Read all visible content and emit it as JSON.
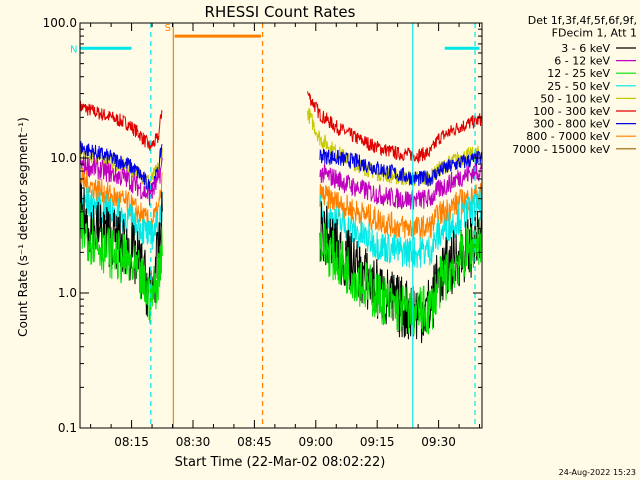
{
  "chart_data": {
    "type": "line",
    "title": "RHESSI Count Rates",
    "xlabel": "Start Time (22-Mar-02 08:02:22)",
    "ylabel": "Count Rate (s⁻¹ detector segment⁻¹)",
    "yscale": "log",
    "ylim": [
      0.1,
      100.0
    ],
    "xlim": [
      "08:02",
      "09:40"
    ],
    "x_unit": "minutes after 08:00",
    "x_range_minutes": [
      2.4,
      100.6
    ],
    "y_ticks": [
      "0.1",
      "1.0",
      "10.0",
      "100.0"
    ],
    "y_tick_values": [
      0.1,
      1.0,
      10.0,
      100.0
    ],
    "x_ticks": [
      "08:15",
      "08:30",
      "08:45",
      "09:00",
      "09:15",
      "09:30"
    ],
    "x_tick_minutes": [
      15,
      30,
      45,
      60,
      75,
      90
    ],
    "legend_header": [
      "Det 1f,3f,4f,5f,6f,9f,",
      "FDecim 1, Att 1"
    ],
    "legend_placement": "right",
    "series": [
      {
        "name": "3 - 6 keV",
        "color": "#000000",
        "segments": [
          {
            "x": [
              2.4,
              6,
              10,
              14,
              17,
              19.5,
              21.5,
              22.5
            ],
            "y": [
              3.8,
              3.0,
              2.6,
              2.2,
              1.6,
              1.0,
              1.8,
              3.5
            ]
          },
          {
            "x": [
              61,
              65,
              70,
              75,
              80,
              85,
              88,
              90,
              95,
              100.6
            ],
            "y": [
              3.0,
              2.1,
              1.5,
              1.05,
              0.8,
              0.72,
              0.78,
              1.3,
              1.9,
              2.6
            ]
          }
        ]
      },
      {
        "name": "6 - 12 keV",
        "color": "#c000c0",
        "segments": [
          {
            "x": [
              2.4,
              6,
              10,
              14,
              17,
              19.5,
              21.5,
              22.5
            ],
            "y": [
              9.0,
              8.4,
              7.7,
              7.0,
              6.0,
              5.2,
              6.8,
              9.0
            ]
          },
          {
            "x": [
              61,
              65,
              70,
              75,
              80,
              85,
              88,
              90,
              95,
              100.6
            ],
            "y": [
              7.8,
              7.0,
              6.0,
              5.4,
              5.0,
              4.9,
              5.0,
              5.8,
              7.2,
              8.2
            ]
          }
        ]
      },
      {
        "name": "12 - 25 keV",
        "color": "#00e000",
        "segments": [
          {
            "x": [
              2.4,
              6,
              10,
              14,
              17,
              19.5,
              21.5,
              22.5
            ],
            "y": [
              3.0,
              2.4,
              2.0,
              1.7,
              1.3,
              0.9,
              1.3,
              2.5
            ]
          },
          {
            "x": [
              61,
              65,
              70,
              75,
              80,
              85,
              88,
              90,
              95,
              100.6
            ],
            "y": [
              2.4,
              1.8,
              1.3,
              0.95,
              0.78,
              0.72,
              0.75,
              1.15,
              1.8,
              2.6
            ]
          }
        ]
      },
      {
        "name": "25 - 50 keV",
        "color": "#00e8e8",
        "segments": [
          {
            "x": [
              2.4,
              6,
              10,
              14,
              17,
              19.5,
              21.5,
              22.5
            ],
            "y": [
              5.0,
              4.4,
              4.0,
              3.6,
              3.1,
              2.6,
              3.2,
              4.6
            ]
          },
          {
            "x": [
              61,
              65,
              70,
              75,
              80,
              85,
              88,
              90,
              95,
              100.6
            ],
            "y": [
              4.1,
              3.4,
              2.8,
              2.3,
              2.05,
              2.0,
              2.1,
              2.7,
              3.6,
              4.6
            ]
          }
        ]
      },
      {
        "name": "50 - 100 keV",
        "color": "#c8c800",
        "segments": [
          {
            "x": [
              2.4,
              6,
              10,
              14,
              17,
              19.5,
              21.5,
              22.5
            ],
            "y": [
              11.0,
              10.2,
              9.4,
              8.6,
              7.6,
              6.6,
              8.4,
              11.0
            ]
          },
          {
            "x": [
              58,
              61,
              65,
              70,
              75,
              80,
              85,
              88,
              90,
              95,
              100.6
            ],
            "y": [
              22,
              14.0,
              11.0,
              9.0,
              7.8,
              7.2,
              7.0,
              7.1,
              8.2,
              10.0,
              11.0
            ]
          }
        ]
      },
      {
        "name": "100 - 300 keV",
        "color": "#e00000",
        "segments": [
          {
            "x": [
              2.4,
              6,
              10,
              14,
              17,
              19.5,
              21.5,
              22.5
            ],
            "y": [
              24,
              22,
              20,
              18,
              15,
              12,
              14,
              24
            ]
          },
          {
            "x": [
              58,
              61,
              65,
              70,
              75,
              80,
              85,
              88,
              90,
              95,
              100.6
            ],
            "y": [
              30,
              21,
              17,
              14,
              12,
              10.8,
              10.5,
              11,
              14,
              17,
              19.5
            ]
          }
        ]
      },
      {
        "name": "300 - 800 keV",
        "color": "#0000e8",
        "segments": [
          {
            "x": [
              2.4,
              6,
              10,
              14,
              17,
              19.5,
              21.5,
              22.5
            ],
            "y": [
              12.0,
              11.0,
              10.0,
              9.0,
              7.6,
              6.0,
              7.8,
              13.0
            ]
          },
          {
            "x": [
              61,
              65,
              70,
              75,
              80,
              85,
              88,
              90,
              95,
              100.6
            ],
            "y": [
              10.5,
              10.0,
              9.4,
              8.4,
              7.6,
              7.0,
              7.1,
              8.0,
              9.2,
              10.0
            ]
          }
        ]
      },
      {
        "name": "800 - 7000 keV",
        "color": "#ff8000",
        "segments": [
          {
            "x": [
              2.4,
              6,
              10,
              14,
              17,
              19.5,
              21.5,
              22.5
            ],
            "y": [
              7.0,
              6.0,
              5.2,
              4.6,
              3.9,
              3.2,
              4.0,
              6.5
            ]
          },
          {
            "x": [
              61,
              65,
              70,
              75,
              80,
              85,
              88,
              90,
              95,
              100.6
            ],
            "y": [
              5.4,
              4.7,
              4.0,
              3.5,
              3.1,
              3.0,
              3.1,
              3.8,
              4.7,
              5.4
            ]
          }
        ]
      },
      {
        "name": "7000 - 15000 keV",
        "color": "#a06000",
        "segments": []
      }
    ],
    "annotations": [
      {
        "text": "N",
        "color": "#00e8e8",
        "x_minutes": 2.4,
        "x_end_minutes": 15.0,
        "y": 65
      },
      {
        "text": "",
        "color": "#00e8e8",
        "x_minutes": 91.5,
        "x_end_minutes": 100.0,
        "y": 65
      },
      {
        "text": "S",
        "color": "#ff8000",
        "x_minutes": 25.5,
        "x_end_minutes": 46.6,
        "y": 80
      }
    ],
    "vertical_lines": [
      {
        "x_minutes": 19.7,
        "color": "#00e8e8",
        "style": "dashed"
      },
      {
        "x_minutes": 25.2,
        "color": "#ff8000",
        "style": "solid"
      },
      {
        "x_minutes": 47.0,
        "color": "#ff8000",
        "style": "dashed"
      },
      {
        "x_minutes": 83.7,
        "color": "#00e8e8",
        "style": "solid"
      },
      {
        "x_minutes": 98.9,
        "color": "#00e8e8",
        "style": "dashed"
      }
    ],
    "grid": false
  },
  "footer": {
    "timestamp": "24-Aug-2022 15:23"
  },
  "colors": {
    "background": "#fffbe6",
    "axes": "#000000"
  }
}
